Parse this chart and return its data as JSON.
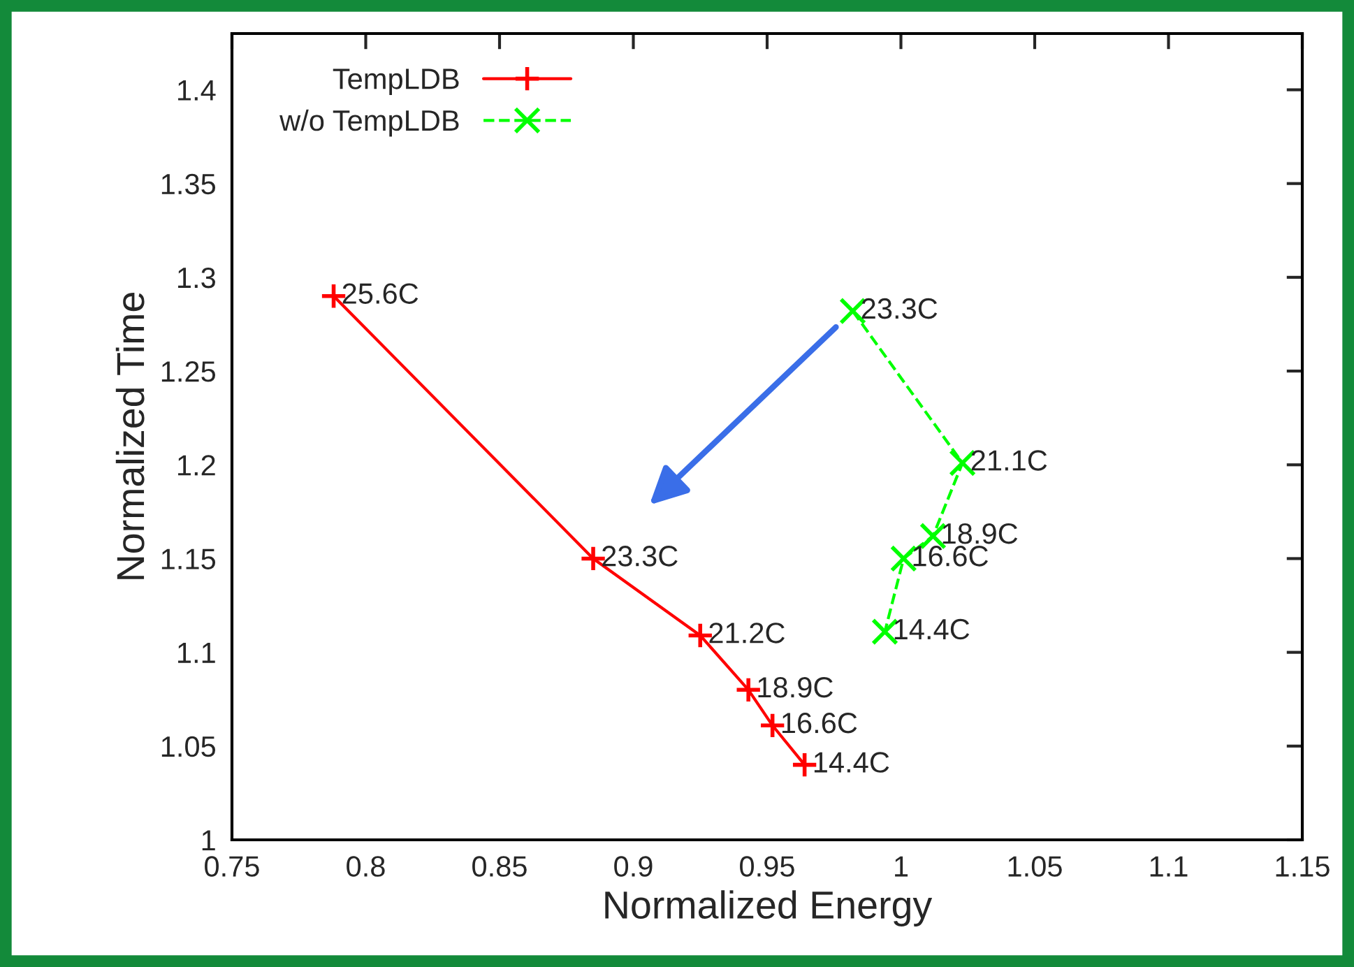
{
  "chart_data": {
    "type": "line",
    "xlabel": "Normalized Energy",
    "ylabel": "Normalized Time",
    "xlim": [
      0.75,
      1.15
    ],
    "xticks": [
      0.75,
      0.8,
      0.85,
      0.9,
      0.95,
      1,
      1.05,
      1.1,
      1.15
    ],
    "ylim": [
      1,
      1.43
    ],
    "yticks": [
      1,
      1.05,
      1.1,
      1.15,
      1.2,
      1.25,
      1.3,
      1.35,
      1.4
    ],
    "grid": false,
    "legend": "top left",
    "series": [
      {
        "name": "TempLDB",
        "color": "#ff0000",
        "marker": "plus",
        "line_style": "solid",
        "x": [
          0.788,
          0.885,
          0.925,
          0.943,
          0.952,
          0.964
        ],
        "values": [
          1.29,
          1.15,
          1.109,
          1.08,
          1.061,
          1.04
        ]
      },
      {
        "name": "w/o TempLDB",
        "color": "#00ff00",
        "marker": "cross",
        "line_style": "dashed",
        "x": [
          0.982,
          1.023,
          1.012,
          1.001,
          0.994
        ],
        "values": [
          1.282,
          1.201,
          1.162,
          1.15,
          1.111
        ]
      }
    ],
    "annotations": [
      {
        "text": "25.6C",
        "x": 0.788,
        "y": 1.29
      },
      {
        "text": "23.3C",
        "x": 0.885,
        "y": 1.15
      },
      {
        "text": "21.2C",
        "x": 0.925,
        "y": 1.109
      },
      {
        "text": "18.9C",
        "x": 0.943,
        "y": 1.08
      },
      {
        "text": "16.6C",
        "x": 0.952,
        "y": 1.061
      },
      {
        "text": "14.4C",
        "x": 0.964,
        "y": 1.04
      },
      {
        "text": "23.3C",
        "x": 0.982,
        "y": 1.282
      },
      {
        "text": "21.1C",
        "x": 1.023,
        "y": 1.201
      },
      {
        "text": "18.9C",
        "x": 1.012,
        "y": 1.162
      },
      {
        "text": "16.6C",
        "x": 1.001,
        "y": 1.15
      },
      {
        "text": "14.4C",
        "x": 0.994,
        "y": 1.111
      }
    ]
  }
}
